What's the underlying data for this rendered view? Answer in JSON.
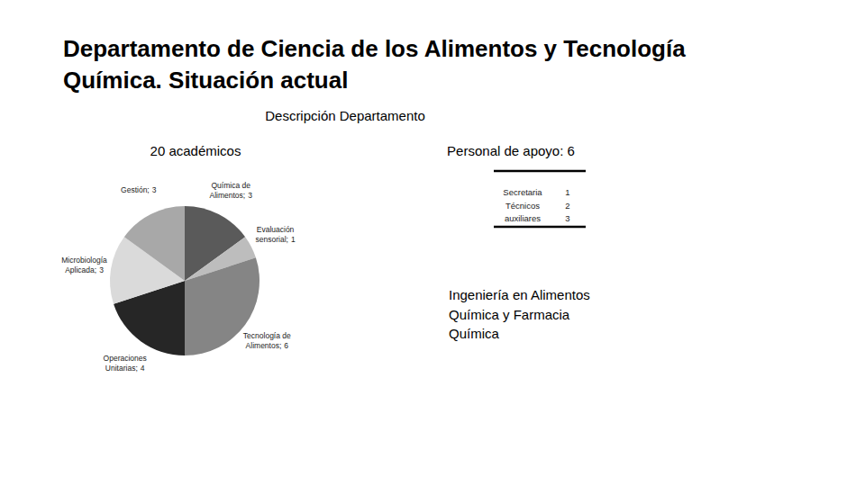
{
  "slide": {
    "title": [
      "Departamento de Ciencia de los Alimentos y Tecnología",
      "Química. Situación actual"
    ],
    "subtitle": "Descripción Departamento"
  },
  "chart_data": {
    "type": "pie",
    "title": "20 académicos",
    "categories": [
      "Química de Alimentos;",
      "Evaluación sensorial;",
      "Tecnología de Alimentos;",
      "Operaciones Unitarias;",
      "Microbiología Aplicada;",
      "Gestión;"
    ],
    "values": [
      3,
      1,
      6,
      4,
      3,
      3
    ],
    "colors": [
      "#5a5a5a",
      "#bdbdbd",
      "#858585",
      "#262626",
      "#dadada",
      "#a8a8a8"
    ],
    "data_labels": true
  },
  "staff": {
    "title": "Personal de apoyo: 6",
    "rows": [
      [
        "Secretaria",
        1
      ],
      [
        "Técnicos",
        2
      ],
      [
        "auxiliares",
        3
      ]
    ]
  },
  "programs": [
    "Ingeniería en Alimentos",
    "Química y Farmacia",
    "Química"
  ]
}
